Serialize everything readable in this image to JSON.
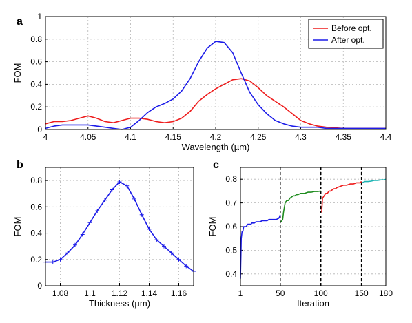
{
  "chart_data": [
    {
      "panel": "a",
      "type": "line",
      "xlabel": "Wavelength (µm)",
      "ylabel": "FOM",
      "xlim": [
        4,
        4.4
      ],
      "ylim": [
        0,
        1
      ],
      "xticks": [
        "4",
        "4.05",
        "4.1",
        "4.15",
        "4.2",
        "4.25",
        "4.3",
        "4.35",
        "4.4"
      ],
      "yticks": [
        "0",
        "0.2",
        "0.4",
        "0.6",
        "0.8",
        "1"
      ],
      "grid": true,
      "legend_position": "top-right",
      "series": [
        {
          "name": "Before opt.",
          "color": "#ee1c1c",
          "x": [
            4.0,
            4.01,
            4.02,
            4.03,
            4.04,
            4.05,
            4.06,
            4.07,
            4.08,
            4.09,
            4.1,
            4.11,
            4.12,
            4.13,
            4.14,
            4.15,
            4.16,
            4.17,
            4.18,
            4.19,
            4.2,
            4.21,
            4.22,
            4.23,
            4.24,
            4.25,
            4.26,
            4.27,
            4.28,
            4.29,
            4.3,
            4.31,
            4.32,
            4.33,
            4.34,
            4.35,
            4.36,
            4.37,
            4.38,
            4.39,
            4.4
          ],
          "y": [
            0.05,
            0.07,
            0.07,
            0.08,
            0.1,
            0.12,
            0.1,
            0.07,
            0.06,
            0.08,
            0.1,
            0.1,
            0.09,
            0.07,
            0.06,
            0.07,
            0.1,
            0.16,
            0.25,
            0.31,
            0.36,
            0.4,
            0.44,
            0.45,
            0.43,
            0.37,
            0.3,
            0.25,
            0.2,
            0.14,
            0.08,
            0.05,
            0.03,
            0.02,
            0.015,
            0.01,
            0.01,
            0.01,
            0.01,
            0.01,
            0.01
          ]
        },
        {
          "name": "After opt.",
          "color": "#1c1ce8",
          "x": [
            4.0,
            4.01,
            4.02,
            4.03,
            4.04,
            4.05,
            4.06,
            4.07,
            4.08,
            4.09,
            4.1,
            4.11,
            4.12,
            4.13,
            4.14,
            4.15,
            4.16,
            4.17,
            4.18,
            4.19,
            4.2,
            4.21,
            4.22,
            4.23,
            4.24,
            4.25,
            4.26,
            4.27,
            4.28,
            4.29,
            4.3,
            4.31,
            4.32,
            4.33,
            4.34,
            4.35,
            4.36,
            4.37,
            4.38,
            4.39,
            4.4
          ],
          "y": [
            0.01,
            0.03,
            0.04,
            0.04,
            0.04,
            0.04,
            0.03,
            0.02,
            0.01,
            0.0,
            0.02,
            0.08,
            0.15,
            0.2,
            0.23,
            0.27,
            0.34,
            0.45,
            0.6,
            0.72,
            0.78,
            0.77,
            0.68,
            0.5,
            0.33,
            0.22,
            0.14,
            0.08,
            0.05,
            0.03,
            0.02,
            0.02,
            0.02,
            0.01,
            0.01,
            0.01,
            0.01,
            0.01,
            0.01,
            0.01,
            0.01
          ]
        }
      ]
    },
    {
      "panel": "b",
      "type": "line",
      "xlabel": "Thickness (µm)",
      "ylabel": "FOM",
      "xlim": [
        1.07,
        1.17
      ],
      "ylim": [
        0,
        0.9
      ],
      "xticks": [
        "1.08",
        "1.1",
        "1.12",
        "1.14",
        "1.16"
      ],
      "yticks": [
        "0",
        "0.2",
        "0.4",
        "0.6",
        "0.8"
      ],
      "grid": true,
      "markers": "plus",
      "series": [
        {
          "color": "#1c1ce8",
          "x": [
            1.07,
            1.075,
            1.08,
            1.085,
            1.09,
            1.095,
            1.1,
            1.105,
            1.11,
            1.115,
            1.12,
            1.125,
            1.13,
            1.135,
            1.14,
            1.145,
            1.15,
            1.155,
            1.16,
            1.165,
            1.17
          ],
          "y": [
            0.18,
            0.18,
            0.2,
            0.25,
            0.31,
            0.39,
            0.48,
            0.57,
            0.65,
            0.73,
            0.79,
            0.76,
            0.66,
            0.54,
            0.43,
            0.35,
            0.3,
            0.25,
            0.2,
            0.15,
            0.11
          ]
        }
      ]
    },
    {
      "panel": "c",
      "type": "line",
      "xlabel": "Iteration",
      "ylabel": "FOM",
      "xlim": [
        1,
        180
      ],
      "ylim": [
        0.35,
        0.85
      ],
      "xticks": [
        "1",
        "50",
        "100",
        "150",
        "180"
      ],
      "yticks": [
        "0.4",
        "0.5",
        "0.6",
        "0.7",
        "0.8"
      ],
      "grid": true,
      "vlines": [
        50,
        100,
        150
      ],
      "series": [
        {
          "color": "#1c1ce8",
          "x": [
            1,
            2,
            3,
            4,
            5,
            6,
            8,
            10,
            12,
            14,
            15,
            18,
            20,
            25,
            28,
            30,
            34,
            36,
            38,
            42,
            45,
            48,
            49,
            50
          ],
          "y": [
            0.38,
            0.55,
            0.58,
            0.58,
            0.6,
            0.6,
            0.6,
            0.61,
            0.61,
            0.61,
            0.615,
            0.615,
            0.62,
            0.62,
            0.625,
            0.625,
            0.625,
            0.63,
            0.63,
            0.63,
            0.63,
            0.635,
            0.64,
            0.65
          ]
        },
        {
          "color": "#1e8c1e",
          "x": [
            51,
            53,
            54,
            56,
            58,
            60,
            62,
            64,
            66,
            68,
            70,
            72,
            75,
            78,
            80,
            84,
            88,
            92,
            96,
            100
          ],
          "y": [
            0.62,
            0.63,
            0.66,
            0.7,
            0.71,
            0.71,
            0.72,
            0.725,
            0.73,
            0.73,
            0.735,
            0.735,
            0.74,
            0.74,
            0.74,
            0.745,
            0.745,
            0.748,
            0.748,
            0.75
          ]
        },
        {
          "color": "#ee1c1c",
          "x": [
            101,
            102,
            104,
            106,
            108,
            110,
            112,
            114,
            116,
            118,
            120,
            124,
            128,
            132,
            136,
            140,
            144,
            148,
            150
          ],
          "y": [
            0.66,
            0.72,
            0.73,
            0.74,
            0.74,
            0.75,
            0.75,
            0.755,
            0.76,
            0.76,
            0.765,
            0.77,
            0.775,
            0.775,
            0.78,
            0.78,
            0.785,
            0.785,
            0.79
          ]
        },
        {
          "color": "#1cb4b4",
          "x": [
            151,
            154,
            158,
            162,
            166,
            170,
            174,
            178,
            180
          ],
          "y": [
            0.785,
            0.79,
            0.79,
            0.792,
            0.795,
            0.795,
            0.797,
            0.797,
            0.8
          ]
        }
      ]
    }
  ]
}
